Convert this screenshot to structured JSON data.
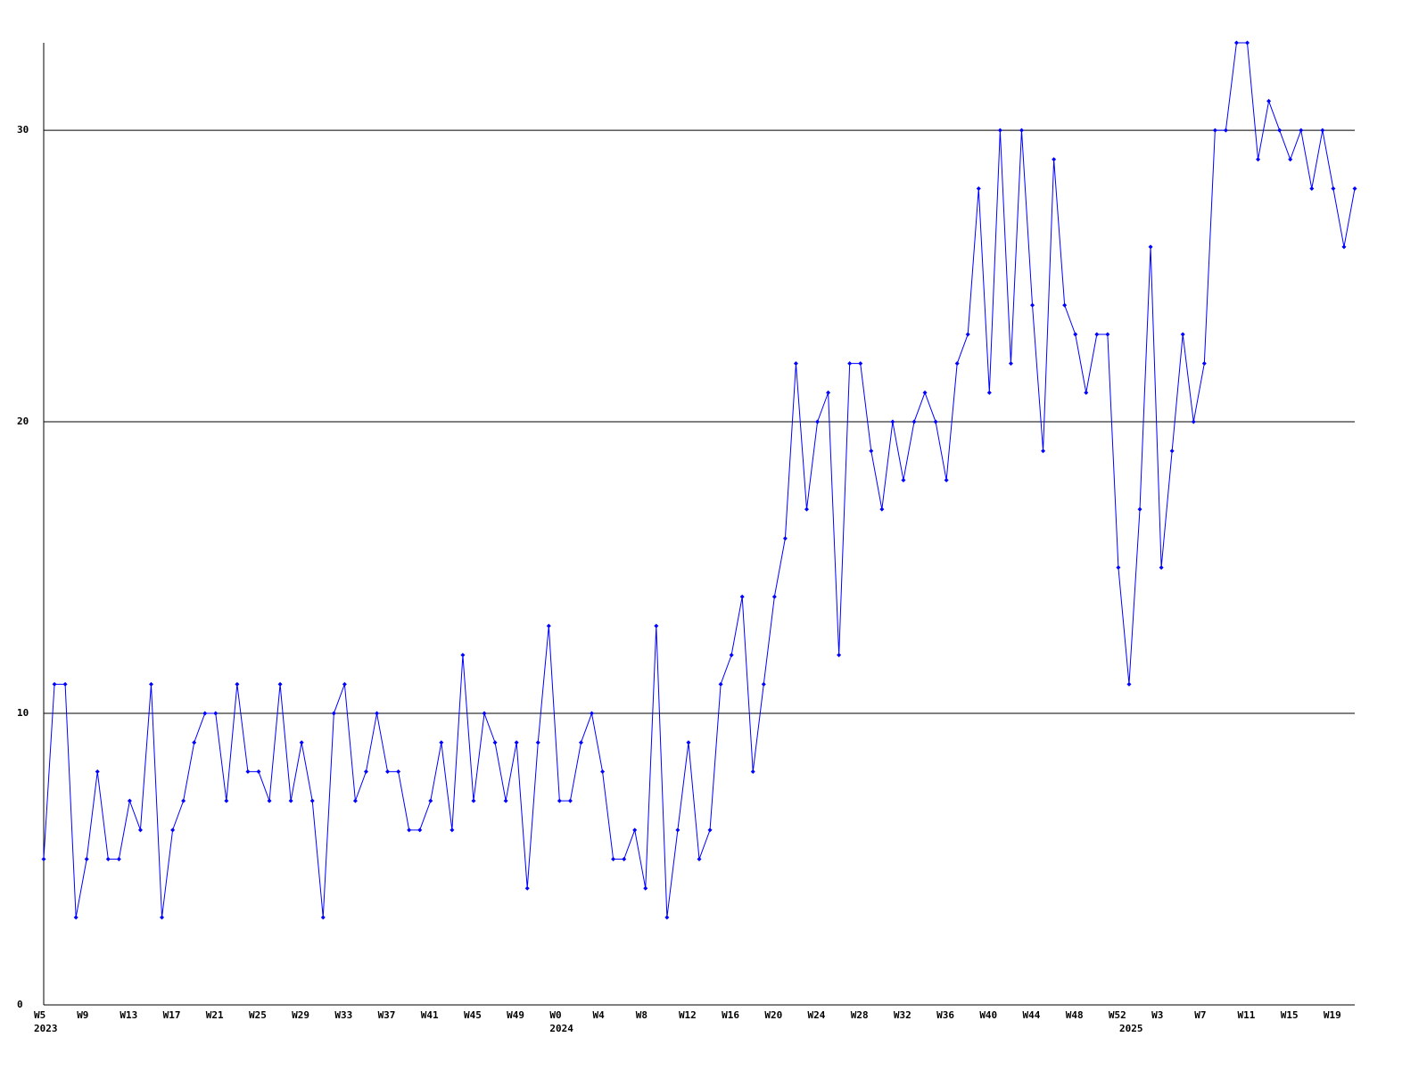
{
  "chart_data": {
    "type": "line",
    "categories": [
      "W5",
      null,
      null,
      null,
      "W9",
      null,
      null,
      null,
      "W13",
      null,
      null,
      null,
      "W17",
      null,
      null,
      null,
      "W21",
      null,
      null,
      null,
      "W25",
      null,
      null,
      null,
      "W29",
      null,
      null,
      null,
      "W33",
      null,
      null,
      null,
      "W37",
      null,
      null,
      null,
      "W41",
      null,
      null,
      null,
      "W45",
      null,
      null,
      null,
      "W49",
      null,
      null,
      null,
      "W0",
      null,
      null,
      null,
      "W4",
      null,
      null,
      null,
      "W8",
      null,
      null,
      null,
      "W12",
      null,
      null,
      null,
      "W16",
      null,
      null,
      null,
      "W20",
      null,
      null,
      null,
      "W24",
      null,
      null,
      null,
      "W28",
      null,
      null,
      null,
      "W32",
      null,
      null,
      null,
      "W36",
      null,
      null,
      null,
      "W40",
      null,
      null,
      null,
      "W44",
      null,
      null,
      null,
      "W48",
      null,
      null,
      null,
      "W52",
      null,
      null,
      null,
      "W3",
      null,
      null,
      null,
      "W7",
      null,
      null,
      null,
      "W11",
      null,
      null,
      null,
      "W15",
      null,
      null,
      null,
      "W19",
      null,
      null
    ],
    "year_labels": [
      "2023",
      null,
      null,
      null,
      null,
      null,
      null,
      null,
      null,
      null,
      null,
      null,
      null,
      null,
      null,
      null,
      null,
      null,
      null,
      null,
      null,
      null,
      null,
      null,
      null,
      null,
      null,
      null,
      null,
      null,
      null,
      null,
      null,
      null,
      null,
      null,
      null,
      null,
      null,
      null,
      null,
      null,
      null,
      null,
      null,
      null,
      null,
      null,
      "2024",
      null,
      null,
      null,
      null,
      null,
      null,
      null,
      null,
      null,
      null,
      null,
      null,
      null,
      null,
      null,
      null,
      null,
      null,
      null,
      null,
      null,
      null,
      null,
      null,
      null,
      null,
      null,
      null,
      null,
      null,
      null,
      null,
      null,
      null,
      null,
      null,
      null,
      null,
      null,
      null,
      null,
      null,
      null,
      null,
      null,
      null,
      null,
      null,
      null,
      null,
      null,
      null,
      "2025",
      null,
      null,
      null,
      null,
      null,
      null,
      null,
      null,
      null,
      null,
      null,
      null,
      null,
      null,
      null,
      null,
      null,
      null,
      null,
      null,
      null
    ],
    "series": [
      {
        "color": "#0000ff",
        "values": [
          5,
          11,
          11,
          3,
          5,
          8,
          5,
          5,
          7,
          6,
          11,
          3,
          6,
          7,
          9,
          10,
          10,
          7,
          11,
          8,
          8,
          7,
          11,
          7,
          9,
          7,
          3,
          10,
          11,
          7,
          8,
          10,
          8,
          8,
          6,
          6,
          7,
          9,
          6,
          12,
          7,
          10,
          9,
          7,
          9,
          4,
          9,
          13,
          7,
          7,
          9,
          10,
          8,
          5,
          5,
          6,
          4,
          13,
          3,
          6,
          9,
          5,
          6,
          11,
          12,
          14,
          8,
          11,
          14,
          16,
          22,
          17,
          20,
          21,
          12,
          22,
          22,
          19,
          17,
          20,
          18,
          20,
          21,
          20,
          18,
          22,
          23,
          28,
          21,
          30,
          22,
          30,
          24,
          19,
          29,
          24,
          23,
          21,
          23,
          23,
          15,
          11,
          17,
          26,
          15,
          19,
          23,
          20,
          22,
          30,
          30,
          33,
          33,
          29,
          31,
          30,
          29,
          30,
          28,
          30,
          28,
          26,
          28
        ]
      }
    ],
    "ylim": [
      0,
      33
    ],
    "yticks": [
      0,
      10,
      20,
      30
    ],
    "grid": true
  }
}
